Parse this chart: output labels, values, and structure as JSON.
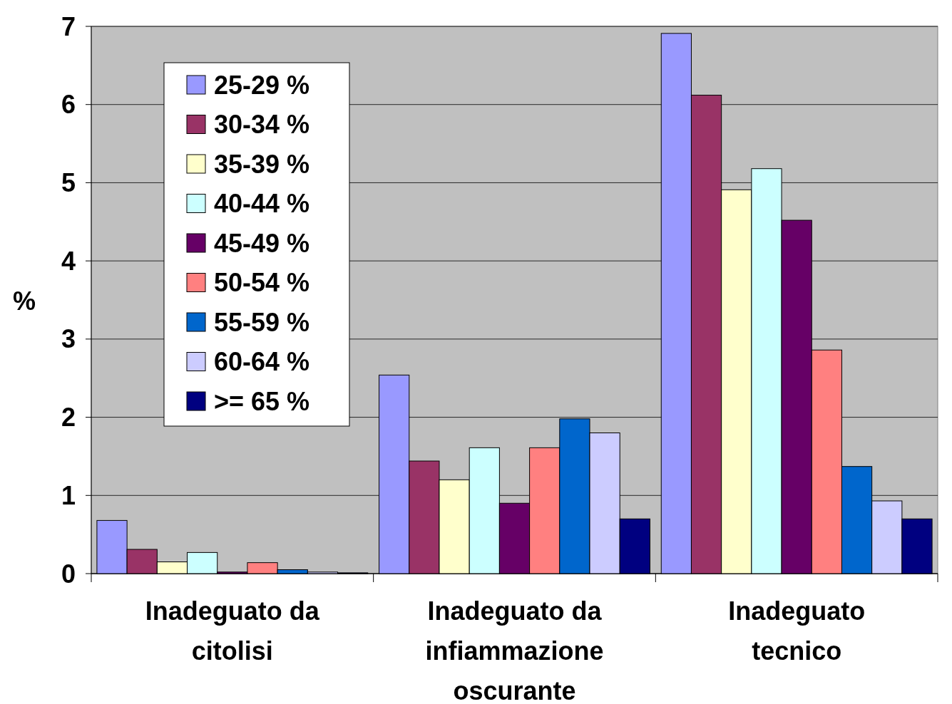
{
  "chart_data": {
    "type": "bar",
    "ylabel": "%",
    "categories": [
      "Inadeguato da citolisi",
      "Inadeguato da infiammazione oscurante",
      "Inadeguato tecnico"
    ],
    "series": [
      {
        "name": "25-29 %",
        "color": "#9999ff",
        "values": [
          0.68,
          2.54,
          6.91
        ]
      },
      {
        "name": "30-34 %",
        "color": "#993366",
        "values": [
          0.31,
          1.44,
          6.12
        ]
      },
      {
        "name": "35-39 %",
        "color": "#ffffcc",
        "values": [
          0.15,
          1.2,
          4.91
        ]
      },
      {
        "name": "40-44 %",
        "color": "#ccffff",
        "values": [
          0.27,
          1.61,
          5.18
        ]
      },
      {
        "name": "45-49 %",
        "color": "#660066",
        "values": [
          0.02,
          0.9,
          4.52
        ]
      },
      {
        "name": "50-54 %",
        "color": "#ff8080",
        "values": [
          0.14,
          1.61,
          2.86
        ]
      },
      {
        "name": "55-59 %",
        "color": "#0066cc",
        "values": [
          0.05,
          1.98,
          1.37
        ]
      },
      {
        "name": "60-64 %",
        "color": "#ccccff",
        "values": [
          0.02,
          1.8,
          0.93
        ]
      },
      {
        "name": ">= 65 %",
        "color": "#000080",
        "values": [
          0.01,
          0.7,
          0.7
        ]
      }
    ],
    "ylim": [
      0,
      7
    ],
    "yticks": [
      0,
      1,
      2,
      3,
      4,
      5,
      6,
      7
    ],
    "grid": "y",
    "legend": "top left"
  }
}
